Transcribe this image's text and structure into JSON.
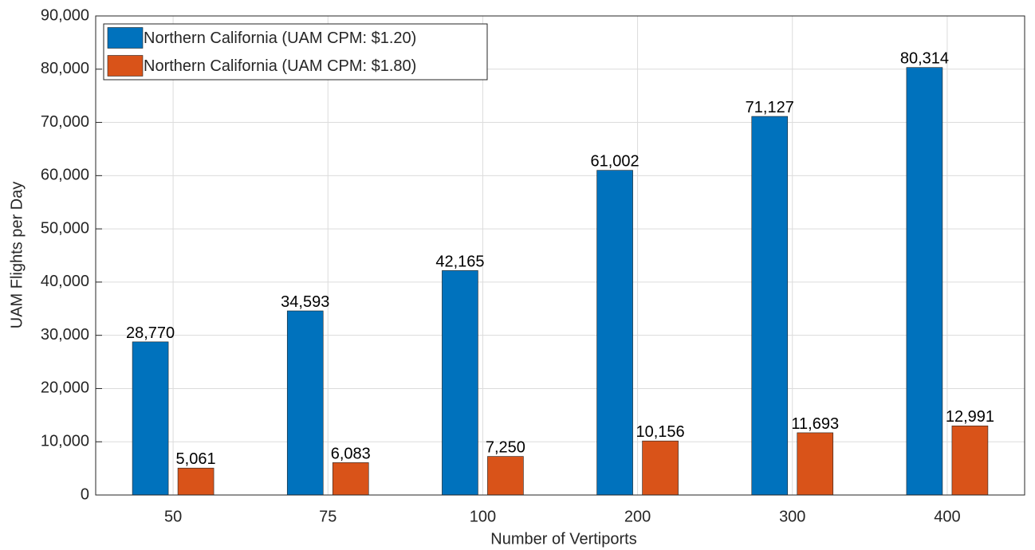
{
  "chart_data": {
    "type": "bar",
    "x_label": "Number of Vertiports",
    "y_label": "UAM Flights per Day",
    "categories": [
      "50",
      "75",
      "100",
      "200",
      "300",
      "400"
    ],
    "series": [
      {
        "name": "Northern California (UAM CPM: $1.20)",
        "color": "#0072bd",
        "values": [
          28770,
          34593,
          42165,
          61002,
          71127,
          80314
        ],
        "value_labels": [
          "28,770",
          "34,593",
          "42,165",
          "61,002",
          "71,127",
          "80,314"
        ]
      },
      {
        "name": "Northern California (UAM CPM: $1.80)",
        "color": "#d95319",
        "values": [
          5061,
          6083,
          7250,
          10156,
          11693,
          12991
        ],
        "value_labels": [
          "5,061",
          "6,083",
          "7,250",
          "10,156",
          "11,693",
          "12,991"
        ]
      }
    ],
    "ylim": [
      0,
      90000
    ],
    "yticks": [
      0,
      {
        "value": 10000,
        "label": "10,000"
      },
      {
        "value": 20000,
        "label": "20,000"
      },
      {
        "value": 30000,
        "label": "30,000"
      },
      {
        "value": 40000,
        "label": "40,000"
      },
      {
        "value": 50000,
        "label": "50,000"
      },
      {
        "value": 60000,
        "label": "60,000"
      },
      {
        "value": 70000,
        "label": "70,000"
      },
      {
        "value": 80000,
        "label": "80,000"
      },
      {
        "value": 90000,
        "label": "90,000"
      }
    ],
    "grid": true,
    "legend": "upper left"
  }
}
